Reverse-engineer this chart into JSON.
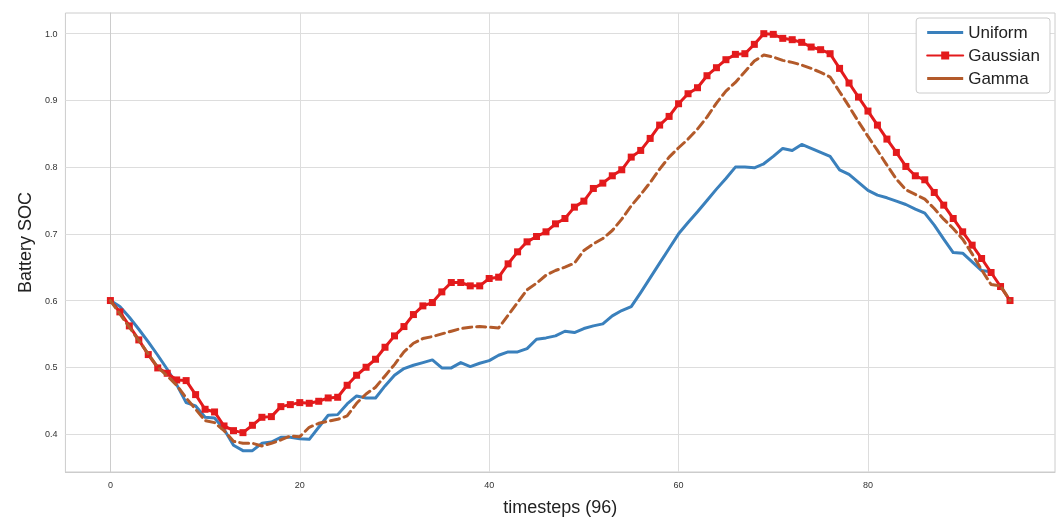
{
  "chart_data": {
    "type": "line",
    "xlabel": "timesteps (96)",
    "ylabel": "Battery SOC",
    "x": [
      0,
      1,
      2,
      3,
      4,
      5,
      6,
      7,
      8,
      9,
      10,
      11,
      12,
      13,
      14,
      15,
      16,
      17,
      18,
      19,
      20,
      21,
      22,
      23,
      24,
      25,
      26,
      27,
      28,
      29,
      30,
      31,
      32,
      33,
      34,
      35,
      36,
      37,
      38,
      39,
      40,
      41,
      42,
      43,
      44,
      45,
      46,
      47,
      48,
      49,
      50,
      51,
      52,
      53,
      54,
      55,
      56,
      57,
      58,
      59,
      60,
      61,
      62,
      63,
      64,
      65,
      66,
      67,
      68,
      69,
      70,
      71,
      72,
      73,
      74,
      75,
      76,
      77,
      78,
      79,
      80,
      81,
      82,
      83,
      84,
      85,
      86,
      87,
      88,
      89,
      90,
      91,
      92,
      93,
      94,
      95
    ],
    "xlim": [
      -4.75,
      99.75
    ],
    "xticks": [
      0,
      20,
      40,
      60,
      80
    ],
    "ylim": [
      0.343,
      1.031
    ],
    "yticks": [
      0.4,
      0.5,
      0.6,
      0.7,
      0.8,
      0.9,
      {
        "value": 1,
        "label": "1.0"
      }
    ],
    "grid": true,
    "legend": "top right",
    "marker": "none",
    "line_style": "solid",
    "series": [
      {
        "name": "Uniform",
        "color": "#3a80bc",
        "values": [
          0.6,
          0.591,
          0.575,
          0.557,
          0.538,
          0.518,
          0.497,
          0.474,
          0.447,
          0.442,
          0.425,
          0.424,
          0.407,
          0.383,
          0.375,
          0.375,
          0.386,
          0.388,
          0.395,
          0.395,
          0.393,
          0.392,
          0.41,
          0.428,
          0.429,
          0.445,
          0.457,
          0.454,
          0.454,
          0.472,
          0.488,
          0.498,
          0.503,
          0.507,
          0.511,
          0.499,
          0.499,
          0.507,
          0.501,
          0.506,
          0.51,
          0.518,
          0.523,
          0.523,
          0.528,
          0.542,
          0.544,
          0.547,
          0.554,
          0.552,
          0.558,
          0.562,
          0.565,
          0.577,
          0.585,
          0.591,
          0.612,
          0.634,
          0.656,
          0.678,
          0.7,
          0.717,
          0.733,
          0.75,
          0.767,
          0.783,
          0.8,
          0.8,
          0.799,
          0.805,
          0.816,
          0.828,
          0.825,
          0.834,
          0.828,
          0.822,
          0.816,
          0.796,
          0.789,
          0.777,
          0.765,
          0.758,
          0.754,
          0.749,
          0.744,
          0.737,
          0.731,
          0.713,
          0.692,
          0.672,
          0.671,
          0.658,
          0.645,
          0.643,
          null,
          null
        ]
      },
      {
        "name": "Gaussian",
        "color": "#e31a1c",
        "marker": "square",
        "values": [
          0.6,
          0.583,
          0.562,
          0.541,
          0.519,
          0.499,
          0.491,
          0.481,
          0.48,
          0.459,
          0.437,
          0.433,
          0.412,
          0.405,
          0.402,
          0.413,
          0.425,
          0.426,
          0.441,
          0.444,
          0.447,
          0.446,
          0.449,
          0.454,
          0.455,
          0.473,
          0.488,
          0.5,
          0.512,
          0.53,
          0.547,
          0.561,
          0.579,
          0.592,
          0.597,
          0.613,
          0.627,
          0.627,
          0.622,
          0.622,
          0.633,
          0.635,
          0.655,
          0.673,
          0.688,
          0.696,
          0.703,
          0.715,
          0.723,
          0.74,
          0.749,
          0.768,
          0.776,
          0.787,
          0.796,
          0.815,
          0.825,
          0.843,
          0.863,
          0.876,
          0.895,
          0.91,
          0.919,
          0.937,
          0.949,
          0.961,
          0.969,
          0.97,
          0.984,
          1.0,
          0.999,
          0.993,
          0.991,
          0.987,
          0.98,
          0.976,
          0.97,
          0.948,
          0.926,
          0.905,
          0.884,
          0.863,
          0.842,
          0.822,
          0.801,
          0.787,
          0.781,
          0.762,
          0.743,
          0.723,
          0.703,
          0.683,
          0.663,
          0.642,
          0.621,
          0.6
        ]
      },
      {
        "name": "Gamma",
        "color": "#b35a2a",
        "line_style": "dashed",
        "values": [
          0.6,
          0.58,
          0.56,
          0.54,
          0.52,
          0.5,
          0.487,
          0.473,
          0.454,
          0.437,
          0.42,
          0.417,
          0.405,
          0.389,
          0.386,
          0.386,
          0.382,
          0.386,
          0.391,
          0.397,
          0.396,
          0.41,
          0.416,
          0.419,
          0.422,
          0.427,
          0.446,
          0.46,
          0.47,
          0.487,
          0.504,
          0.523,
          0.536,
          0.543,
          0.546,
          0.55,
          0.554,
          0.558,
          0.56,
          0.561,
          0.56,
          0.559,
          0.578,
          0.597,
          0.616,
          0.626,
          0.638,
          0.645,
          0.65,
          0.656,
          0.675,
          0.685,
          0.693,
          0.705,
          0.722,
          0.742,
          0.759,
          0.777,
          0.797,
          0.815,
          0.829,
          0.842,
          0.857,
          0.875,
          0.896,
          0.914,
          0.927,
          0.943,
          0.959,
          0.968,
          0.965,
          0.96,
          0.957,
          0.953,
          0.948,
          0.942,
          0.935,
          0.913,
          0.891,
          0.868,
          0.846,
          0.825,
          0.803,
          0.782,
          0.766,
          0.759,
          0.752,
          0.738,
          0.722,
          0.708,
          0.692,
          0.67,
          0.646,
          0.624,
          0.622,
          0.6
        ]
      }
    ]
  }
}
